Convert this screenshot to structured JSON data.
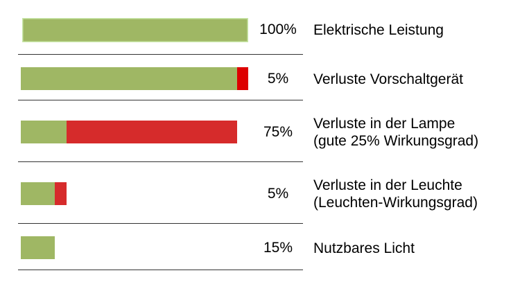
{
  "chart_data": {
    "type": "bar",
    "stacked": true,
    "orientation": "horizontal",
    "scale_max": 100,
    "colors": {
      "remaining": "#9fb764",
      "loss": "#d62b2b",
      "loss_small": "#dd0000",
      "border": "#c8e6a8"
    },
    "rows": [
      {
        "percent": "100%",
        "label_lines": [
          "Elektrische Leistung"
        ],
        "remaining": 100,
        "loss": 0
      },
      {
        "percent": "5%",
        "label_lines": [
          "Verluste Vorschaltgerät"
        ],
        "remaining": 95,
        "loss": 5
      },
      {
        "percent": "75%",
        "label_lines": [
          "Verluste in der Lampe",
          "(gute 25% Wirkungsgrad)"
        ],
        "remaining": 20,
        "loss": 75
      },
      {
        "percent": "5%",
        "label_lines": [
          "Verluste in der Leuchte",
          "(Leuchten-Wirkungsgrad)"
        ],
        "remaining": 15,
        "loss": 5
      },
      {
        "percent": "15%",
        "label_lines": [
          "Nutzbares Licht"
        ],
        "remaining": 15,
        "loss": 0
      }
    ]
  }
}
